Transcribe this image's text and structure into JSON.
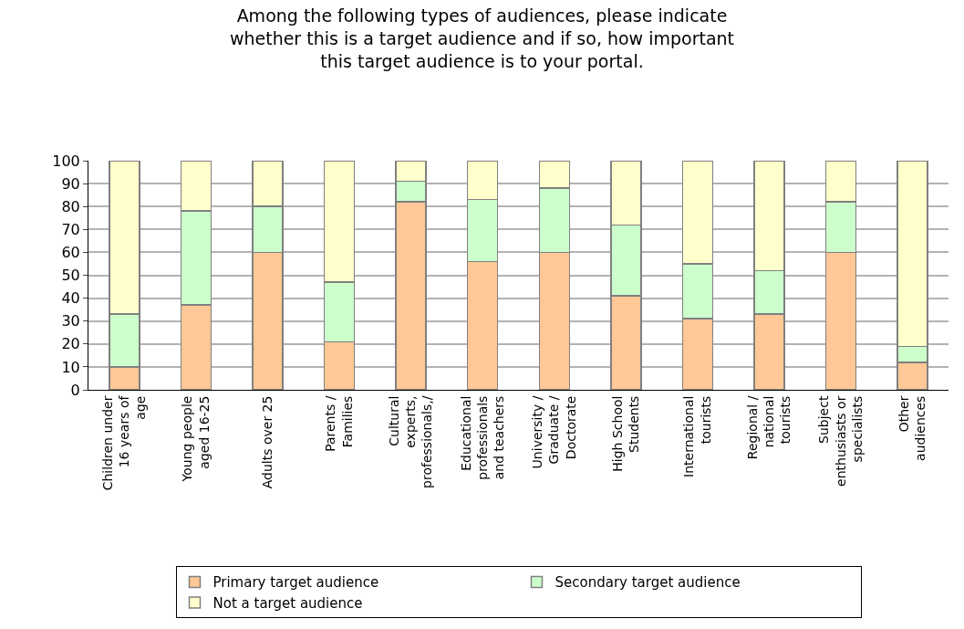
{
  "chart_data": {
    "type": "bar",
    "stacked": true,
    "title": "Among the following types of audiences, please indicate whether this is a target audience and if so, how important this target audience is to your portal.",
    "categories": [
      "Children under 16 years of age",
      "Young people aged 16-25",
      "Adults over 25",
      "Parents / Families",
      "Cultural experts, professionals,/",
      "Educational professionals and teachers",
      "University / Graduate / Doctorate",
      "High School Students",
      "International tourists",
      "Regional / national tourists",
      "Subject enthusiasts or specialists",
      "Other audiences"
    ],
    "series": [
      {
        "name": "Primary target audience",
        "color": "#ffc896",
        "values": [
          10,
          37,
          60,
          21,
          82,
          56,
          60,
          41,
          31,
          33,
          60,
          12
        ]
      },
      {
        "name": "Secondary target audience",
        "color": "#ccffcc",
        "values": [
          23,
          41,
          20,
          26,
          9,
          27,
          28,
          31,
          24,
          19,
          22,
          7
        ]
      },
      {
        "name": "Not a target audience",
        "color": "#ffffcc",
        "values": [
          67,
          22,
          20,
          53,
          9,
          17,
          12,
          28,
          45,
          48,
          18,
          81
        ]
      }
    ],
    "ylim": [
      0,
      100
    ],
    "yticks": [
      0,
      10,
      20,
      30,
      40,
      50,
      60,
      70,
      80,
      90,
      100
    ],
    "grid": "y",
    "legend": "bottom"
  }
}
